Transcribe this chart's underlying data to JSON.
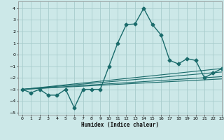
{
  "title": "",
  "xlabel": "Humidex (Indice chaleur)",
  "xlim": [
    -0.5,
    23
  ],
  "ylim": [
    -5.2,
    4.6
  ],
  "xticks": [
    0,
    1,
    2,
    3,
    4,
    5,
    6,
    7,
    8,
    9,
    10,
    11,
    12,
    13,
    14,
    15,
    16,
    17,
    18,
    19,
    20,
    21,
    22,
    23
  ],
  "yticks": [
    -5,
    -4,
    -3,
    -2,
    -1,
    0,
    1,
    2,
    3,
    4
  ],
  "bg_color": "#cce8e8",
  "grid_color": "#a8cccc",
  "line_color": "#1a6b6b",
  "main_x": [
    0,
    1,
    2,
    3,
    4,
    5,
    6,
    7,
    8,
    9,
    10,
    11,
    12,
    13,
    14,
    15,
    16,
    17,
    18,
    19,
    20,
    21,
    22,
    23
  ],
  "main_y": [
    -3.0,
    -3.3,
    -3.0,
    -3.5,
    -3.5,
    -3.0,
    -4.6,
    -3.0,
    -3.0,
    -3.0,
    -1.0,
    1.0,
    2.6,
    2.65,
    4.0,
    2.6,
    1.7,
    -0.5,
    -0.8,
    -0.35,
    -0.5,
    -2.0,
    -1.6,
    -1.2
  ],
  "trend1_x": [
    0,
    23
  ],
  "trend1_y": [
    -3.0,
    -1.2
  ],
  "trend2_x": [
    0,
    23
  ],
  "trend2_y": [
    -3.0,
    -1.5
  ],
  "trend3_x": [
    0,
    23
  ],
  "trend3_y": [
    -3.0,
    -1.9
  ],
  "trend4_x": [
    0,
    23
  ],
  "trend4_y": [
    -3.0,
    -2.1
  ]
}
